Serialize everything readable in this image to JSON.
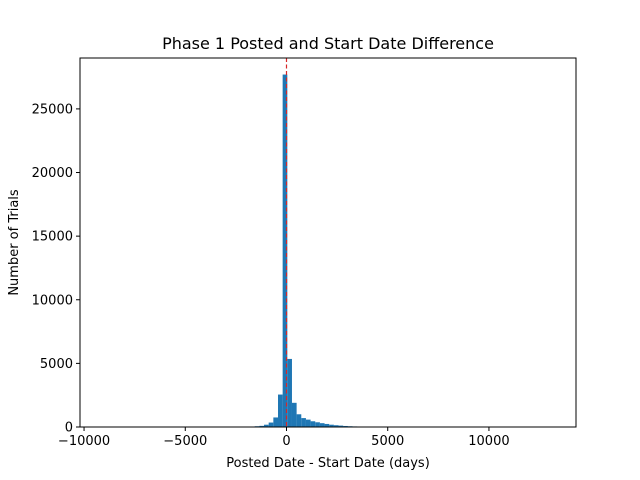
{
  "chart_data": {
    "type": "bar",
    "title": "Phase 1 Posted and Start Date Difference",
    "xlabel": "Posted Date - Start Date (days)",
    "ylabel": "Number of Trials",
    "xlim": [
      -10200,
      14300
    ],
    "ylim": [
      0,
      29000
    ],
    "grid": false,
    "bar_color": "#1f77b4",
    "reference_line": {
      "x": 0,
      "color": "#d62728",
      "style": "dashed"
    },
    "x_ticks": [
      {
        "value": -10000,
        "label": "−10000"
      },
      {
        "value": -5000,
        "label": "−5000"
      },
      {
        "value": 0,
        "label": "0"
      },
      {
        "value": 5000,
        "label": "5000"
      },
      {
        "value": 10000,
        "label": "10000"
      }
    ],
    "y_ticks": [
      {
        "value": 0,
        "label": "0"
      },
      {
        "value": 5000,
        "label": "5000"
      },
      {
        "value": 10000,
        "label": "10000"
      },
      {
        "value": 15000,
        "label": "15000"
      },
      {
        "value": 20000,
        "label": "20000"
      },
      {
        "value": 25000,
        "label": "25000"
      }
    ],
    "bins": [
      {
        "x0": -1800,
        "x1": -1570,
        "count": 30
      },
      {
        "x0": -1570,
        "x1": -1340,
        "count": 60
      },
      {
        "x0": -1340,
        "x1": -1110,
        "count": 90
      },
      {
        "x0": -1110,
        "x1": -880,
        "count": 180
      },
      {
        "x0": -880,
        "x1": -650,
        "count": 350
      },
      {
        "x0": -650,
        "x1": -420,
        "count": 750
      },
      {
        "x0": -420,
        "x1": -190,
        "count": 2550
      },
      {
        "x0": -190,
        "x1": 40,
        "count": 27700
      },
      {
        "x0": 40,
        "x1": 270,
        "count": 5350
      },
      {
        "x0": 270,
        "x1": 500,
        "count": 1900
      },
      {
        "x0": 500,
        "x1": 730,
        "count": 1000
      },
      {
        "x0": 730,
        "x1": 960,
        "count": 700
      },
      {
        "x0": 960,
        "x1": 1190,
        "count": 580
      },
      {
        "x0": 1190,
        "x1": 1420,
        "count": 450
      },
      {
        "x0": 1420,
        "x1": 1650,
        "count": 370
      },
      {
        "x0": 1650,
        "x1": 1880,
        "count": 300
      },
      {
        "x0": 1880,
        "x1": 2110,
        "count": 240
      },
      {
        "x0": 2110,
        "x1": 2340,
        "count": 180
      },
      {
        "x0": 2340,
        "x1": 2570,
        "count": 140
      },
      {
        "x0": 2570,
        "x1": 2800,
        "count": 110
      },
      {
        "x0": 2800,
        "x1": 3030,
        "count": 80
      },
      {
        "x0": 3030,
        "x1": 3260,
        "count": 60
      },
      {
        "x0": 3260,
        "x1": 3490,
        "count": 45
      },
      {
        "x0": 3490,
        "x1": 3720,
        "count": 35
      },
      {
        "x0": 3720,
        "x1": 3950,
        "count": 25
      }
    ]
  }
}
